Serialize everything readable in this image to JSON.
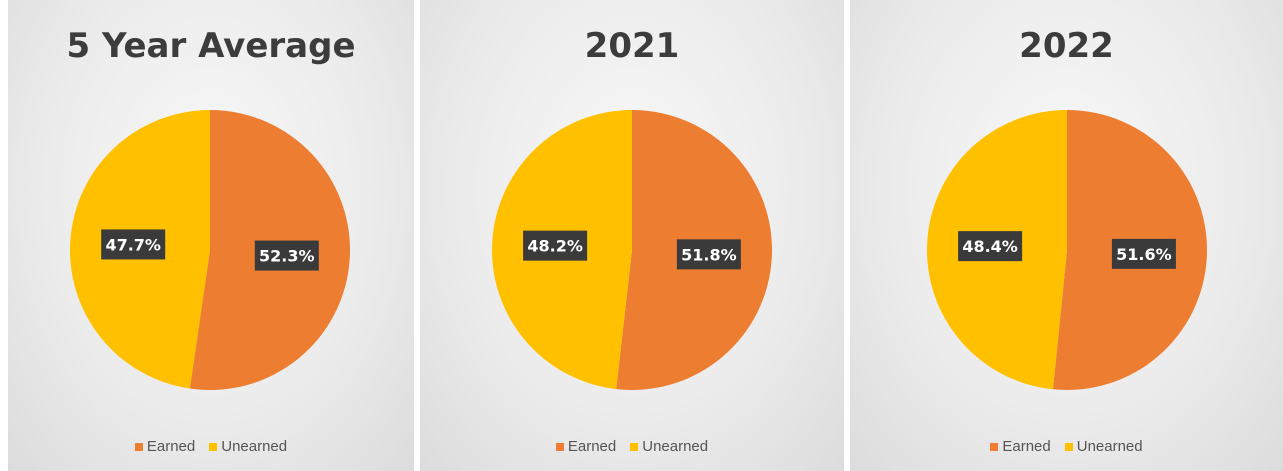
{
  "colors": {
    "earned": "#ED7D31",
    "unearned": "#FFC000",
    "label_bg": "#3a3a3a",
    "label_text": "#ffffff"
  },
  "legend": {
    "earned": "Earned",
    "unearned": "Unearned"
  },
  "chart_data": [
    {
      "type": "pie",
      "title": "5 Year Average",
      "slices": [
        {
          "name": "Earned",
          "value": 52.3,
          "label": "52.3%"
        },
        {
          "name": "Unearned",
          "value": 47.7,
          "label": "47.7%"
        }
      ],
      "legend": "bottom"
    },
    {
      "type": "pie",
      "title": "2021",
      "slices": [
        {
          "name": "Earned",
          "value": 51.8,
          "label": "51.8%"
        },
        {
          "name": "Unearned",
          "value": 48.2,
          "label": "48.2%"
        }
      ],
      "legend": "bottom"
    },
    {
      "type": "pie",
      "title": "2022",
      "slices": [
        {
          "name": "Earned",
          "value": 51.6,
          "label": "51.6%"
        },
        {
          "name": "Unearned",
          "value": 48.4,
          "label": "48.4%"
        }
      ],
      "legend": "bottom"
    }
  ]
}
